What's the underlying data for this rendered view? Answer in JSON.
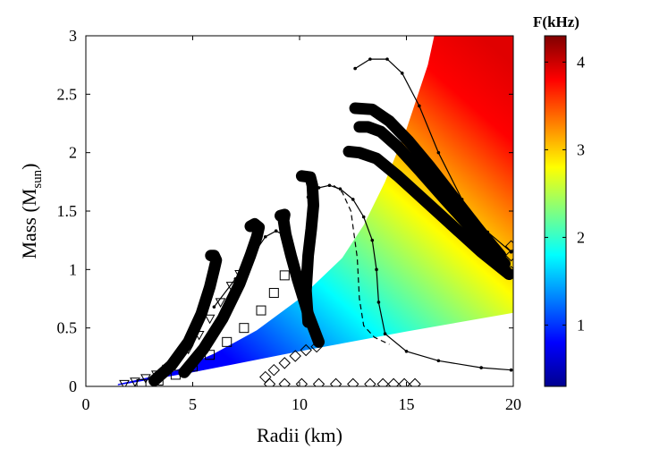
{
  "chart_data": {
    "type": "scatter",
    "title": "",
    "xlabel": "Radii (km)",
    "ylabel_main": "Mass (M",
    "ylabel_sub": "sun",
    "ylabel_close": ")",
    "xlim": [
      0,
      20
    ],
    "ylim": [
      0,
      3
    ],
    "x_ticks": [
      "0",
      "5",
      "10",
      "15",
      "20"
    ],
    "y_ticks": [
      "0",
      "0.5",
      "1",
      "1.5",
      "2",
      "2.5",
      "3"
    ],
    "colorbar": {
      "title": "F(kHz)",
      "range": [
        0.3,
        4.3
      ],
      "ticks": [
        "1",
        "2",
        "3",
        "4"
      ],
      "colors": [
        "#00008f",
        "#0000ff",
        "#0080ff",
        "#00ffff",
        "#80ff80",
        "#ffff00",
        "#ff8000",
        "#ff0000",
        "#800000"
      ]
    },
    "frequency_region": {
      "description": "Colored band of stable configurations, shaded by frequency",
      "upper_edge": [
        [
          1.5,
          0.02
        ],
        [
          4,
          0.12
        ],
        [
          6,
          0.28
        ],
        [
          8,
          0.48
        ],
        [
          10,
          0.75
        ],
        [
          12,
          1.1
        ],
        [
          13,
          1.38
        ],
        [
          14,
          1.75
        ],
        [
          15,
          2.2
        ],
        [
          16,
          2.75
        ],
        [
          16.3,
          3
        ]
      ],
      "lower_edge": [
        [
          1.5,
          0.01
        ],
        [
          5,
          0.12
        ],
        [
          10,
          0.3
        ],
        [
          15,
          0.47
        ],
        [
          20,
          0.63
        ]
      ]
    },
    "series": [
      {
        "name": "thick-band-1",
        "marker": "band",
        "points": [
          [
            3.2,
            0.05
          ],
          [
            4.0,
            0.18
          ],
          [
            4.8,
            0.38
          ],
          [
            5.4,
            0.62
          ],
          [
            5.8,
            0.85
          ],
          [
            6.0,
            1.0
          ],
          [
            6.1,
            1.08
          ],
          [
            6.0,
            1.12
          ],
          [
            5.85,
            1.12
          ]
        ]
      },
      {
        "name": "thick-band-2",
        "marker": "band",
        "points": [
          [
            4.6,
            0.12
          ],
          [
            5.5,
            0.32
          ],
          [
            6.4,
            0.58
          ],
          [
            7.2,
            0.88
          ],
          [
            7.7,
            1.12
          ],
          [
            8.0,
            1.28
          ],
          [
            8.1,
            1.36
          ],
          [
            7.9,
            1.39
          ],
          [
            7.7,
            1.37
          ]
        ]
      },
      {
        "name": "thick-band-3",
        "marker": "band",
        "points": [
          [
            10.9,
            0.38
          ],
          [
            10.4,
            0.62
          ],
          [
            9.9,
            0.92
          ],
          [
            9.6,
            1.12
          ],
          [
            9.35,
            1.3
          ],
          [
            9.25,
            1.42
          ],
          [
            9.3,
            1.47
          ],
          [
            9.1,
            1.46
          ]
        ]
      },
      {
        "name": "thick-band-4",
        "marker": "band",
        "points": [
          [
            10.4,
            0.55
          ],
          [
            10.3,
            0.82
          ],
          [
            10.4,
            1.12
          ],
          [
            10.55,
            1.35
          ],
          [
            10.65,
            1.55
          ],
          [
            10.6,
            1.72
          ],
          [
            10.5,
            1.79
          ],
          [
            10.1,
            1.8
          ]
        ]
      },
      {
        "name": "thick-band-5",
        "marker": "band",
        "points": [
          [
            19.8,
            0.96
          ],
          [
            18.5,
            1.15
          ],
          [
            17,
            1.4
          ],
          [
            15.8,
            1.6
          ],
          [
            14.6,
            1.8
          ],
          [
            13.6,
            1.95
          ],
          [
            12.8,
            2.0
          ],
          [
            12.3,
            2.01
          ]
        ]
      },
      {
        "name": "thick-band-6",
        "marker": "band",
        "points": [
          [
            19.6,
            1.05
          ],
          [
            18.2,
            1.32
          ],
          [
            16.8,
            1.6
          ],
          [
            15.6,
            1.85
          ],
          [
            14.6,
            2.05
          ],
          [
            13.8,
            2.18
          ],
          [
            13.2,
            2.22
          ],
          [
            12.8,
            2.22
          ]
        ]
      },
      {
        "name": "thick-band-7",
        "marker": "band",
        "points": [
          [
            19.4,
            1.12
          ],
          [
            18.3,
            1.36
          ],
          [
            17.2,
            1.62
          ],
          [
            16.1,
            1.88
          ],
          [
            15.1,
            2.1
          ],
          [
            14.2,
            2.27
          ],
          [
            13.4,
            2.37
          ],
          [
            12.6,
            2.38
          ]
        ]
      },
      {
        "name": "triangles",
        "marker": "triangle",
        "points": [
          [
            1.8,
            0.02
          ],
          [
            2.3,
            0.04
          ],
          [
            2.8,
            0.07
          ],
          [
            3.3,
            0.1
          ],
          [
            3.8,
            0.15
          ],
          [
            4.3,
            0.22
          ],
          [
            4.8,
            0.32
          ],
          [
            5.3,
            0.44
          ],
          [
            5.8,
            0.58
          ],
          [
            6.3,
            0.72
          ],
          [
            6.8,
            0.86
          ],
          [
            7.2,
            0.96
          ]
        ]
      },
      {
        "name": "squares",
        "marker": "square",
        "points": [
          [
            2.6,
            0.02
          ],
          [
            3.4,
            0.05
          ],
          [
            4.2,
            0.1
          ],
          [
            5.0,
            0.17
          ],
          [
            5.8,
            0.27
          ],
          [
            6.6,
            0.38
          ],
          [
            7.4,
            0.5
          ],
          [
            8.2,
            0.65
          ],
          [
            8.8,
            0.8
          ],
          [
            9.3,
            0.95
          ]
        ]
      },
      {
        "name": "diamonds-base",
        "marker": "diamond",
        "points": [
          [
            8.6,
            0.02
          ],
          [
            9.3,
            0.02
          ],
          [
            10.1,
            0.02
          ],
          [
            10.9,
            0.02
          ],
          [
            11.7,
            0.02
          ],
          [
            12.5,
            0.02
          ],
          [
            13.3,
            0.02
          ],
          [
            13.9,
            0.02
          ],
          [
            14.4,
            0.02
          ],
          [
            14.9,
            0.02
          ],
          [
            15.4,
            0.02
          ]
        ]
      },
      {
        "name": "diamonds-arc",
        "marker": "diamond",
        "points": [
          [
            8.4,
            0.08
          ],
          [
            8.8,
            0.14
          ],
          [
            9.3,
            0.2
          ],
          [
            9.8,
            0.26
          ],
          [
            10.3,
            0.31
          ],
          [
            10.8,
            0.34
          ]
        ]
      },
      {
        "name": "diamonds-right",
        "marker": "diamond",
        "points": [
          [
            19.9,
            0.98
          ],
          [
            19.9,
            1.12
          ],
          [
            19.9,
            1.2
          ]
        ]
      },
      {
        "name": "thin-solid-1",
        "marker": "line",
        "points": [
          [
            6.0,
            0.68
          ],
          [
            7.0,
            0.92
          ],
          [
            7.8,
            1.12
          ],
          [
            8.4,
            1.28
          ],
          [
            8.9,
            1.33
          ],
          [
            9.2,
            1.3
          ]
        ]
      },
      {
        "name": "thin-solid-2",
        "marker": "line",
        "points": [
          [
            10.4,
            1.62
          ],
          [
            10.9,
            1.7
          ],
          [
            11.4,
            1.72
          ],
          [
            11.9,
            1.69
          ],
          [
            12.5,
            1.6
          ],
          [
            13.0,
            1.45
          ],
          [
            13.4,
            1.25
          ],
          [
            13.6,
            1.0
          ],
          [
            13.7,
            0.72
          ],
          [
            14,
            0.45
          ],
          [
            15,
            0.3
          ],
          [
            16.5,
            0.22
          ],
          [
            18.5,
            0.16
          ],
          [
            19.9,
            0.14
          ]
        ]
      },
      {
        "name": "thin-dashed",
        "marker": "dashed",
        "points": [
          [
            11.6,
            1.72
          ],
          [
            12.0,
            1.66
          ],
          [
            12.4,
            1.5
          ],
          [
            12.7,
            1.1
          ],
          [
            12.8,
            0.75
          ],
          [
            13.0,
            0.52
          ],
          [
            13.5,
            0.42
          ],
          [
            14.2,
            0.36
          ]
        ]
      },
      {
        "name": "thin-solid-top",
        "marker": "line",
        "points": [
          [
            12.6,
            2.72
          ],
          [
            13.3,
            2.8
          ],
          [
            14.1,
            2.8
          ],
          [
            14.8,
            2.68
          ],
          [
            15.6,
            2.4
          ],
          [
            16.5,
            2.0
          ],
          [
            17.6,
            1.6
          ],
          [
            18.8,
            1.32
          ],
          [
            19.9,
            1.15
          ]
        ]
      }
    ]
  }
}
